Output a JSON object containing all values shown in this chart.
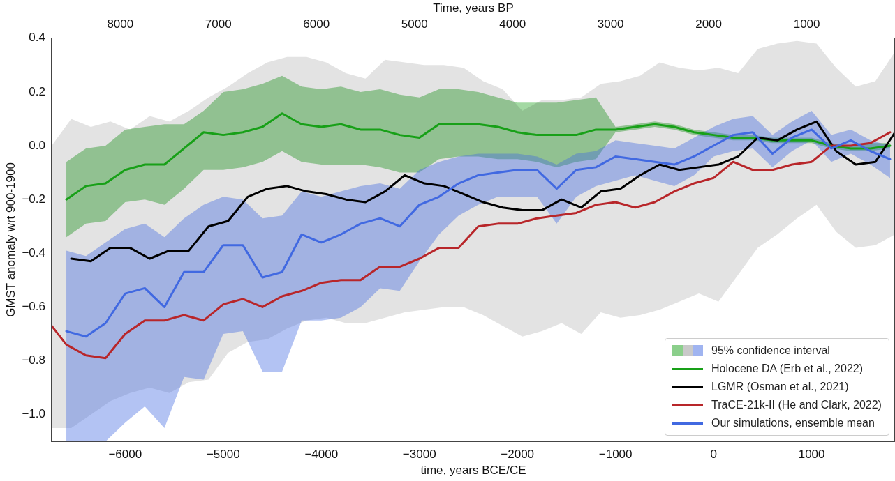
{
  "chart_data": {
    "type": "line",
    "xlabel": "time, years BCE/CE",
    "ylabel": "GMST anomaly wrt 900-1900",
    "x2label": "Time, years BP",
    "annotations": [
      "95% confidence interval"
    ],
    "xlim": [
      -6750,
      1850
    ],
    "xticks": [
      {
        "value": -6000,
        "label": "−6000"
      },
      {
        "value": -5000,
        "label": "−5000"
      },
      {
        "value": -4000,
        "label": "−4000"
      },
      {
        "value": -3000,
        "label": "−3000"
      },
      {
        "value": -2000,
        "label": "−2000"
      },
      {
        "value": -1000,
        "label": "−1000"
      },
      0,
      1000
    ],
    "x2lim": [
      8700,
      100
    ],
    "x2ticks": [
      8000,
      7000,
      6000,
      5000,
      4000,
      3000,
      2000,
      1000
    ],
    "ylim": [
      -1.1,
      0.4
    ],
    "yticks": [
      {
        "value": -1,
        "label": "−1.0"
      },
      {
        "value": -0.8,
        "label": "−0.8"
      },
      {
        "value": -0.6,
        "label": "−0.6"
      },
      {
        "value": -0.4,
        "label": "−0.4"
      },
      {
        "value": -0.2,
        "label": "−0.2"
      },
      {
        "value": 0,
        "label": "0.0"
      },
      0.2,
      0.4
    ],
    "legend": "bottom right",
    "marker": "none",
    "line_style": "solid",
    "series": [
      {
        "name": "Holocene DA (Erb et al., 2022)",
        "color": "#18a018",
        "x": [
          -6600,
          -6400,
          -6200,
          -6000,
          -5800,
          -5600,
          -5400,
          -5200,
          -5000,
          -4800,
          -4600,
          -4400,
          -4200,
          -4000,
          -3800,
          -3600,
          -3400,
          -3200,
          -3000,
          -2800,
          -2600,
          -2400,
          -2200,
          -2000,
          -1800,
          -1600,
          -1400,
          -1200,
          -1000,
          -800,
          -600,
          -400,
          -200,
          0,
          200,
          400,
          600,
          800,
          1000,
          1200,
          1400,
          1600,
          1800
        ],
        "values": [
          -0.2,
          -0.15,
          -0.14,
          -0.09,
          -0.07,
          -0.07,
          -0.01,
          0.05,
          0.04,
          0.05,
          0.07,
          0.12,
          0.08,
          0.07,
          0.08,
          0.06,
          0.06,
          0.04,
          0.03,
          0.08,
          0.08,
          0.08,
          0.07,
          0.05,
          0.04,
          0.04,
          0.04,
          0.06,
          0.06,
          0.07,
          0.08,
          0.07,
          0.05,
          0.04,
          0.03,
          0.03,
          0.02,
          0.02,
          0.02,
          0.0,
          -0.01,
          -0.01,
          0.0
        ],
        "upper": [
          -0.06,
          -0.01,
          0.0,
          0.06,
          0.07,
          0.08,
          0.08,
          0.13,
          0.2,
          0.21,
          0.23,
          0.26,
          0.22,
          0.21,
          0.22,
          0.2,
          0.21,
          0.19,
          0.18,
          0.21,
          0.21,
          0.2,
          0.18,
          0.16,
          0.16,
          0.16,
          0.17,
          0.18,
          0.07,
          0.08,
          0.09,
          0.08,
          0.06,
          0.05,
          0.04,
          0.04,
          0.03,
          0.03,
          0.03,
          0.01,
          0.0,
          0.01,
          0.01
        ],
        "lower": [
          -0.34,
          -0.29,
          -0.28,
          -0.21,
          -0.2,
          -0.22,
          -0.16,
          -0.09,
          -0.09,
          -0.08,
          -0.06,
          -0.02,
          -0.06,
          -0.07,
          -0.07,
          -0.07,
          -0.08,
          -0.1,
          -0.1,
          -0.05,
          -0.04,
          -0.04,
          -0.05,
          -0.05,
          -0.06,
          -0.08,
          -0.06,
          -0.05,
          0.05,
          0.06,
          0.07,
          0.06,
          0.04,
          0.03,
          0.02,
          0.02,
          0.01,
          0.01,
          0.01,
          -0.01,
          -0.02,
          -0.02,
          -0.01
        ]
      },
      {
        "name": "LGMR (Osman et al., 2021)",
        "color": "#000000",
        "x": [
          -6750,
          -6550,
          -6350,
          -6150,
          -5950,
          -5750,
          -5550,
          -5350,
          -5150,
          -4950,
          -4750,
          -4550,
          -4350,
          -4150,
          -3950,
          -3750,
          -3550,
          -3350,
          -3150,
          -2950,
          -2750,
          -2550,
          -2350,
          -2150,
          -1950,
          -1750,
          -1550,
          -1350,
          -1150,
          -950,
          -750,
          -550,
          -350,
          -150,
          50,
          250,
          450,
          650,
          850,
          1050,
          1250,
          1450,
          1650,
          1850
        ],
        "values": [
          null,
          -0.42,
          -0.43,
          -0.38,
          -0.38,
          -0.42,
          -0.39,
          -0.39,
          -0.3,
          -0.28,
          -0.19,
          -0.16,
          -0.15,
          -0.17,
          -0.18,
          -0.2,
          -0.21,
          -0.17,
          -0.11,
          -0.14,
          -0.15,
          -0.18,
          -0.21,
          -0.23,
          -0.24,
          -0.24,
          -0.2,
          -0.23,
          -0.17,
          -0.16,
          -0.11,
          -0.07,
          -0.09,
          -0.08,
          -0.07,
          -0.04,
          0.03,
          0.02,
          0.06,
          0.09,
          -0.02,
          -0.07,
          -0.06,
          0.05
        ],
        "upper": [
          0.0,
          0.1,
          0.07,
          0.09,
          0.06,
          0.11,
          0.09,
          0.13,
          0.18,
          0.22,
          0.27,
          0.31,
          0.33,
          0.33,
          0.31,
          0.27,
          0.25,
          0.32,
          0.31,
          0.3,
          0.3,
          0.29,
          0.24,
          0.21,
          0.13,
          0.17,
          0.17,
          0.18,
          0.23,
          0.24,
          0.26,
          0.31,
          0.29,
          0.28,
          0.29,
          0.27,
          0.36,
          0.38,
          0.39,
          0.38,
          0.29,
          0.22,
          0.24,
          0.35
        ],
        "lower": [
          -1.05,
          -1.05,
          -1.0,
          -0.95,
          -0.92,
          -0.9,
          -0.92,
          -0.88,
          -0.87,
          -0.77,
          -0.73,
          -0.72,
          -0.68,
          -0.65,
          -0.64,
          -0.66,
          -0.66,
          -0.64,
          -0.62,
          -0.61,
          -0.6,
          -0.6,
          -0.63,
          -0.67,
          -0.71,
          -0.69,
          -0.66,
          -0.7,
          -0.62,
          -0.64,
          -0.63,
          -0.61,
          -0.58,
          -0.55,
          -0.58,
          -0.48,
          -0.38,
          -0.33,
          -0.27,
          -0.22,
          -0.32,
          -0.38,
          -0.37,
          -0.33
        ]
      },
      {
        "name": "TraCE-21k-II (He and Clark, 2022)",
        "color": "#b8262a",
        "x": [
          -6750,
          -6600,
          -6400,
          -6200,
          -6000,
          -5800,
          -5600,
          -5400,
          -5200,
          -5000,
          -4800,
          -4600,
          -4400,
          -4200,
          -4000,
          -3800,
          -3600,
          -3400,
          -3200,
          -3000,
          -2800,
          -2600,
          -2400,
          -2200,
          -2000,
          -1800,
          -1600,
          -1400,
          -1200,
          -1000,
          -800,
          -600,
          -400,
          -200,
          0,
          200,
          400,
          600,
          800,
          1000,
          1200,
          1400,
          1600,
          1800
        ],
        "values": [
          -0.67,
          -0.74,
          -0.78,
          -0.79,
          -0.7,
          -0.65,
          -0.65,
          -0.63,
          -0.65,
          -0.59,
          -0.57,
          -0.6,
          -0.56,
          -0.54,
          -0.51,
          -0.5,
          -0.5,
          -0.45,
          -0.45,
          -0.42,
          -0.38,
          -0.38,
          -0.3,
          -0.29,
          -0.29,
          -0.27,
          -0.26,
          -0.25,
          -0.22,
          -0.21,
          -0.23,
          -0.21,
          -0.17,
          -0.14,
          -0.12,
          -0.06,
          -0.09,
          -0.09,
          -0.07,
          -0.06,
          0.0,
          0.0,
          0.01,
          0.05
        ]
      },
      {
        "name": "Our simulations, ensemble mean",
        "color": "#4169e1",
        "x": [
          -6600,
          -6400,
          -6200,
          -6000,
          -5800,
          -5600,
          -5400,
          -5200,
          -5000,
          -4800,
          -4600,
          -4400,
          -4200,
          -4000,
          -3800,
          -3600,
          -3400,
          -3200,
          -3000,
          -2800,
          -2600,
          -2400,
          -2200,
          -2000,
          -1800,
          -1600,
          -1400,
          -1200,
          -1000,
          -800,
          -600,
          -400,
          -200,
          0,
          200,
          400,
          600,
          800,
          1000,
          1200,
          1400,
          1600,
          1800
        ],
        "values": [
          -0.69,
          -0.71,
          -0.66,
          -0.55,
          -0.53,
          -0.6,
          -0.47,
          -0.47,
          -0.37,
          -0.37,
          -0.49,
          -0.47,
          -0.33,
          -0.36,
          -0.33,
          -0.29,
          -0.27,
          -0.3,
          -0.22,
          -0.19,
          -0.14,
          -0.11,
          -0.1,
          -0.09,
          -0.09,
          -0.16,
          -0.09,
          -0.08,
          -0.04,
          -0.05,
          -0.06,
          -0.07,
          -0.04,
          0.0,
          0.04,
          0.05,
          -0.03,
          0.03,
          0.06,
          -0.01,
          0.02,
          -0.02,
          -0.05
        ],
        "upper": [
          -0.39,
          -0.41,
          -0.36,
          -0.31,
          -0.29,
          -0.34,
          -0.27,
          -0.22,
          -0.19,
          -0.2,
          -0.27,
          -0.26,
          -0.17,
          -0.19,
          -0.17,
          -0.15,
          -0.14,
          -0.16,
          -0.09,
          -0.06,
          -0.04,
          -0.03,
          -0.03,
          -0.03,
          -0.04,
          -0.07,
          -0.03,
          -0.02,
          0.02,
          0.01,
          0.0,
          -0.01,
          0.03,
          0.07,
          0.1,
          0.11,
          0.04,
          0.09,
          0.13,
          0.04,
          0.06,
          0.02,
          0.0
        ],
        "lower": [
          -1.1,
          -1.1,
          -1.1,
          -1.03,
          -0.97,
          -1.05,
          -0.86,
          -0.87,
          -0.7,
          -0.69,
          -0.84,
          -0.84,
          -0.65,
          -0.65,
          -0.64,
          -0.6,
          -0.53,
          -0.54,
          -0.43,
          -0.33,
          -0.26,
          -0.22,
          -0.19,
          -0.19,
          -0.19,
          -0.29,
          -0.19,
          -0.15,
          -0.13,
          -0.11,
          -0.13,
          -0.15,
          -0.11,
          -0.04,
          -0.02,
          -0.01,
          -0.08,
          -0.02,
          0.02,
          -0.06,
          -0.03,
          -0.07,
          -0.12
        ]
      }
    ]
  }
}
